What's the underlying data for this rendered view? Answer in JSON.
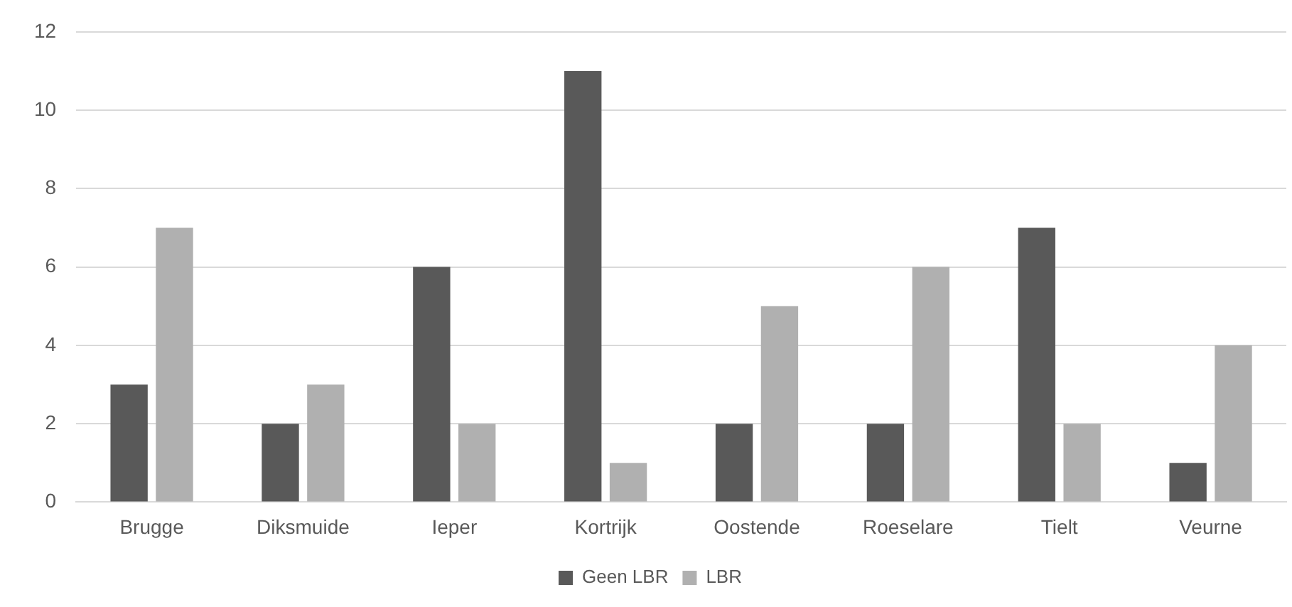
{
  "chart_data": {
    "type": "bar",
    "categories": [
      "Brugge",
      "Diksmuide",
      "Ieper",
      "Kortrijk",
      "Oostende",
      "Roeselare",
      "Tielt",
      "Veurne"
    ],
    "series": [
      {
        "name": "Geen LBR",
        "color": "#595959",
        "values": [
          3,
          2,
          6,
          11,
          2,
          2,
          7,
          1
        ]
      },
      {
        "name": "LBR",
        "color": "#b0b0b0",
        "values": [
          7,
          3,
          2,
          1,
          5,
          6,
          2,
          4
        ]
      }
    ],
    "ylim": [
      0,
      12
    ],
    "yticks": [
      0,
      2,
      4,
      6,
      8,
      10,
      12
    ],
    "grid": "y",
    "legend": "bottom"
  }
}
